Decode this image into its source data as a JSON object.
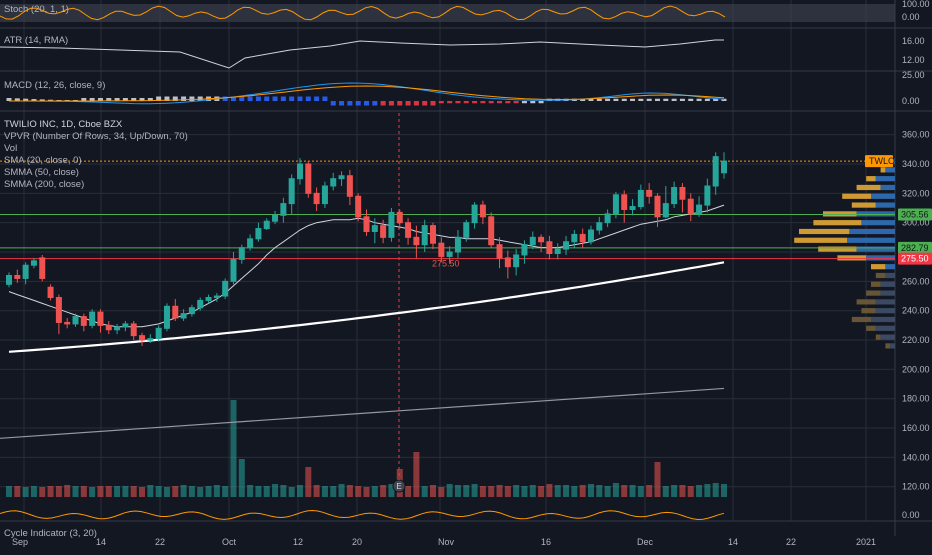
{
  "chart_data": {
    "type": "candlestick",
    "title": "TWILIO INC, 1D, Cboe BZX",
    "symbol": "TWLO",
    "overlays": [
      "VPVR (Number Of Rows, 34, Up/Down, 70)",
      "Vol",
      "SMA (20, close, 0)",
      "SMMA (50, close)",
      "SMMA (200, close)"
    ],
    "x_ticks": [
      "Sep",
      "14",
      "22",
      "Oct",
      "12",
      "20",
      "Nov",
      "16",
      "Dec",
      "14",
      "22",
      "2021"
    ],
    "price_ticks": [
      "360.00",
      "340.00",
      "320.00",
      "300.00",
      "280.00",
      "260.00",
      "240.00",
      "220.00",
      "200.00",
      "180.00",
      "160.00",
      "140.00",
      "120.00"
    ],
    "price_range": [
      113,
      370
    ],
    "horizontal_levels": [
      {
        "label": "305.56",
        "value": 305.56,
        "color": "#4caf50"
      },
      {
        "label": "282.79",
        "value": 282.79,
        "color": "#4caf50"
      },
      {
        "label": "275.50",
        "value": 275.5,
        "color": "#f23645"
      }
    ],
    "last_price_label": "TWLO",
    "last_price": 342,
    "annotation_low": "275.50",
    "event_marker": "E",
    "candles": [
      [
        258,
        264,
        256,
        266
      ],
      [
        264,
        262,
        259,
        268
      ],
      [
        262,
        271,
        258,
        273
      ],
      [
        271,
        274,
        269,
        276
      ],
      [
        276,
        262,
        260,
        278
      ],
      [
        256,
        249,
        247,
        258
      ],
      [
        249,
        232,
        224,
        251
      ],
      [
        232,
        231,
        228,
        235
      ],
      [
        231,
        236,
        229,
        238
      ],
      [
        236,
        230,
        226,
        238
      ],
      [
        230,
        239,
        228,
        241
      ],
      [
        239,
        230,
        225,
        241
      ],
      [
        230,
        227,
        224,
        233
      ],
      [
        227,
        229,
        224,
        231
      ],
      [
        229,
        231,
        226,
        233
      ],
      [
        231,
        223,
        220,
        233
      ],
      [
        223,
        220,
        216,
        225
      ],
      [
        220,
        221,
        218,
        224
      ],
      [
        221,
        228,
        219,
        230
      ],
      [
        228,
        243,
        226,
        245
      ],
      [
        243,
        235,
        233,
        248
      ],
      [
        235,
        238,
        233,
        241
      ],
      [
        238,
        242,
        236,
        244
      ],
      [
        242,
        247,
        240,
        249
      ],
      [
        247,
        249,
        245,
        251
      ],
      [
        249,
        250,
        246,
        252
      ],
      [
        250,
        260,
        248,
        262
      ],
      [
        260,
        275,
        258,
        280
      ],
      [
        275,
        283,
        272,
        285
      ],
      [
        283,
        289,
        281,
        292
      ],
      [
        289,
        296,
        287,
        300
      ],
      [
        296,
        301,
        295,
        303
      ],
      [
        301,
        305,
        299,
        308
      ],
      [
        305,
        313,
        300,
        317
      ],
      [
        313,
        330,
        306,
        333
      ],
      [
        330,
        340,
        326,
        344
      ],
      [
        340,
        320,
        317,
        342
      ],
      [
        320,
        313,
        308,
        324
      ],
      [
        313,
        325,
        310,
        328
      ],
      [
        325,
        330,
        322,
        334
      ],
      [
        330,
        332,
        325,
        335
      ],
      [
        332,
        318,
        312,
        336
      ],
      [
        318,
        304,
        301,
        320
      ],
      [
        304,
        294,
        291,
        309
      ],
      [
        294,
        298,
        286,
        303
      ],
      [
        298,
        290,
        286,
        302
      ],
      [
        290,
        307,
        287,
        310
      ],
      [
        307,
        300,
        296,
        309
      ],
      [
        300,
        290,
        285,
        303
      ],
      [
        290,
        285,
        276,
        298
      ],
      [
        285,
        298,
        280,
        302
      ],
      [
        298,
        286,
        282,
        300
      ],
      [
        286,
        277,
        273,
        290
      ],
      [
        277,
        280,
        272,
        284
      ],
      [
        280,
        290,
        276,
        295
      ],
      [
        290,
        300,
        287,
        302
      ],
      [
        300,
        312,
        296,
        314
      ],
      [
        312,
        304,
        299,
        315
      ],
      [
        304,
        285,
        283,
        307
      ],
      [
        285,
        276,
        269,
        290
      ],
      [
        276,
        270,
        262,
        281
      ],
      [
        270,
        278,
        264,
        282
      ],
      [
        278,
        285,
        272,
        288
      ],
      [
        285,
        290,
        282,
        294
      ],
      [
        290,
        287,
        280,
        292
      ],
      [
        287,
        279,
        275,
        291
      ],
      [
        279,
        282,
        275,
        286
      ],
      [
        282,
        287,
        278,
        291
      ],
      [
        287,
        292,
        283,
        295
      ],
      [
        292,
        287,
        283,
        296
      ],
      [
        287,
        295,
        285,
        298
      ],
      [
        295,
        300,
        292,
        304
      ],
      [
        300,
        306,
        297,
        309
      ],
      [
        306,
        319,
        303,
        321
      ],
      [
        319,
        309,
        300,
        322
      ],
      [
        309,
        311,
        305,
        316
      ],
      [
        311,
        322,
        309,
        326
      ],
      [
        322,
        318,
        313,
        327
      ],
      [
        318,
        304,
        297,
        320
      ],
      [
        304,
        313,
        303,
        325
      ],
      [
        313,
        324,
        310,
        328
      ],
      [
        324,
        316,
        307,
        327
      ],
      [
        316,
        306,
        301,
        320
      ],
      [
        306,
        312,
        304,
        318
      ],
      [
        312,
        325,
        307,
        330
      ],
      [
        325,
        345,
        319,
        348
      ],
      [
        334,
        342,
        330,
        348
      ]
    ],
    "sma20": [
      253,
      251,
      249,
      247,
      245,
      243,
      241,
      239,
      237,
      235,
      233,
      231,
      230,
      229,
      229,
      229,
      229,
      230,
      231,
      233,
      235,
      237,
      239,
      242,
      245,
      248,
      252,
      257,
      262,
      267,
      272,
      278,
      283,
      287,
      291,
      295,
      298,
      300,
      301,
      302,
      302,
      302,
      303,
      302,
      300,
      299,
      298,
      297,
      296,
      294,
      293,
      292,
      291,
      290,
      290,
      289,
      289,
      289,
      289,
      288,
      287,
      286,
      285,
      284,
      283,
      283,
      283,
      284,
      285,
      286,
      287,
      289,
      291,
      293,
      295,
      297,
      299,
      300,
      301,
      302,
      304,
      305,
      306,
      307,
      308,
      310,
      312
    ],
    "smma200_start": 212,
    "smma200_end": 273,
    "volume_heights": [
      11,
      11,
      10,
      11,
      10,
      11,
      11,
      12,
      11,
      11,
      10,
      11,
      11,
      11,
      11,
      11,
      10,
      12,
      11,
      10,
      11,
      12,
      11,
      10,
      11,
      12,
      11,
      12,
      11,
      12,
      11,
      11,
      13,
      12,
      10,
      12,
      11,
      12,
      11,
      11,
      13,
      12,
      11,
      10,
      11,
      12,
      13,
      12,
      11,
      12,
      11,
      12,
      10,
      13,
      12,
      12,
      13,
      11,
      11,
      12,
      11,
      12,
      11,
      12,
      11,
      13,
      12,
      12,
      11,
      12,
      13,
      12,
      11,
      14,
      12,
      12,
      11,
      12,
      12,
      11,
      12,
      12,
      11,
      12,
      13,
      14,
      13
    ],
    "volume_spikes": {
      "27": 97,
      "28": 38,
      "36": 30,
      "47": 28,
      "49": 45,
      "78": 35
    },
    "sma_volume": [
      180,
      187
    ],
    "stoch": {
      "label": "Stoch (20, 1, 1)",
      "ticks": [
        "100.00",
        "0.00"
      ]
    },
    "atr": {
      "label": "ATR (14, RMA)",
      "ticks": [
        "16.00",
        "12.00"
      ]
    },
    "macd": {
      "label": "MACD (12, 26, close, 9)",
      "ticks": [
        "25.00",
        "0.00"
      ]
    },
    "cycle": {
      "label": "Cycle Indicator (3, 20)",
      "ticks": [
        "0.00"
      ]
    }
  }
}
